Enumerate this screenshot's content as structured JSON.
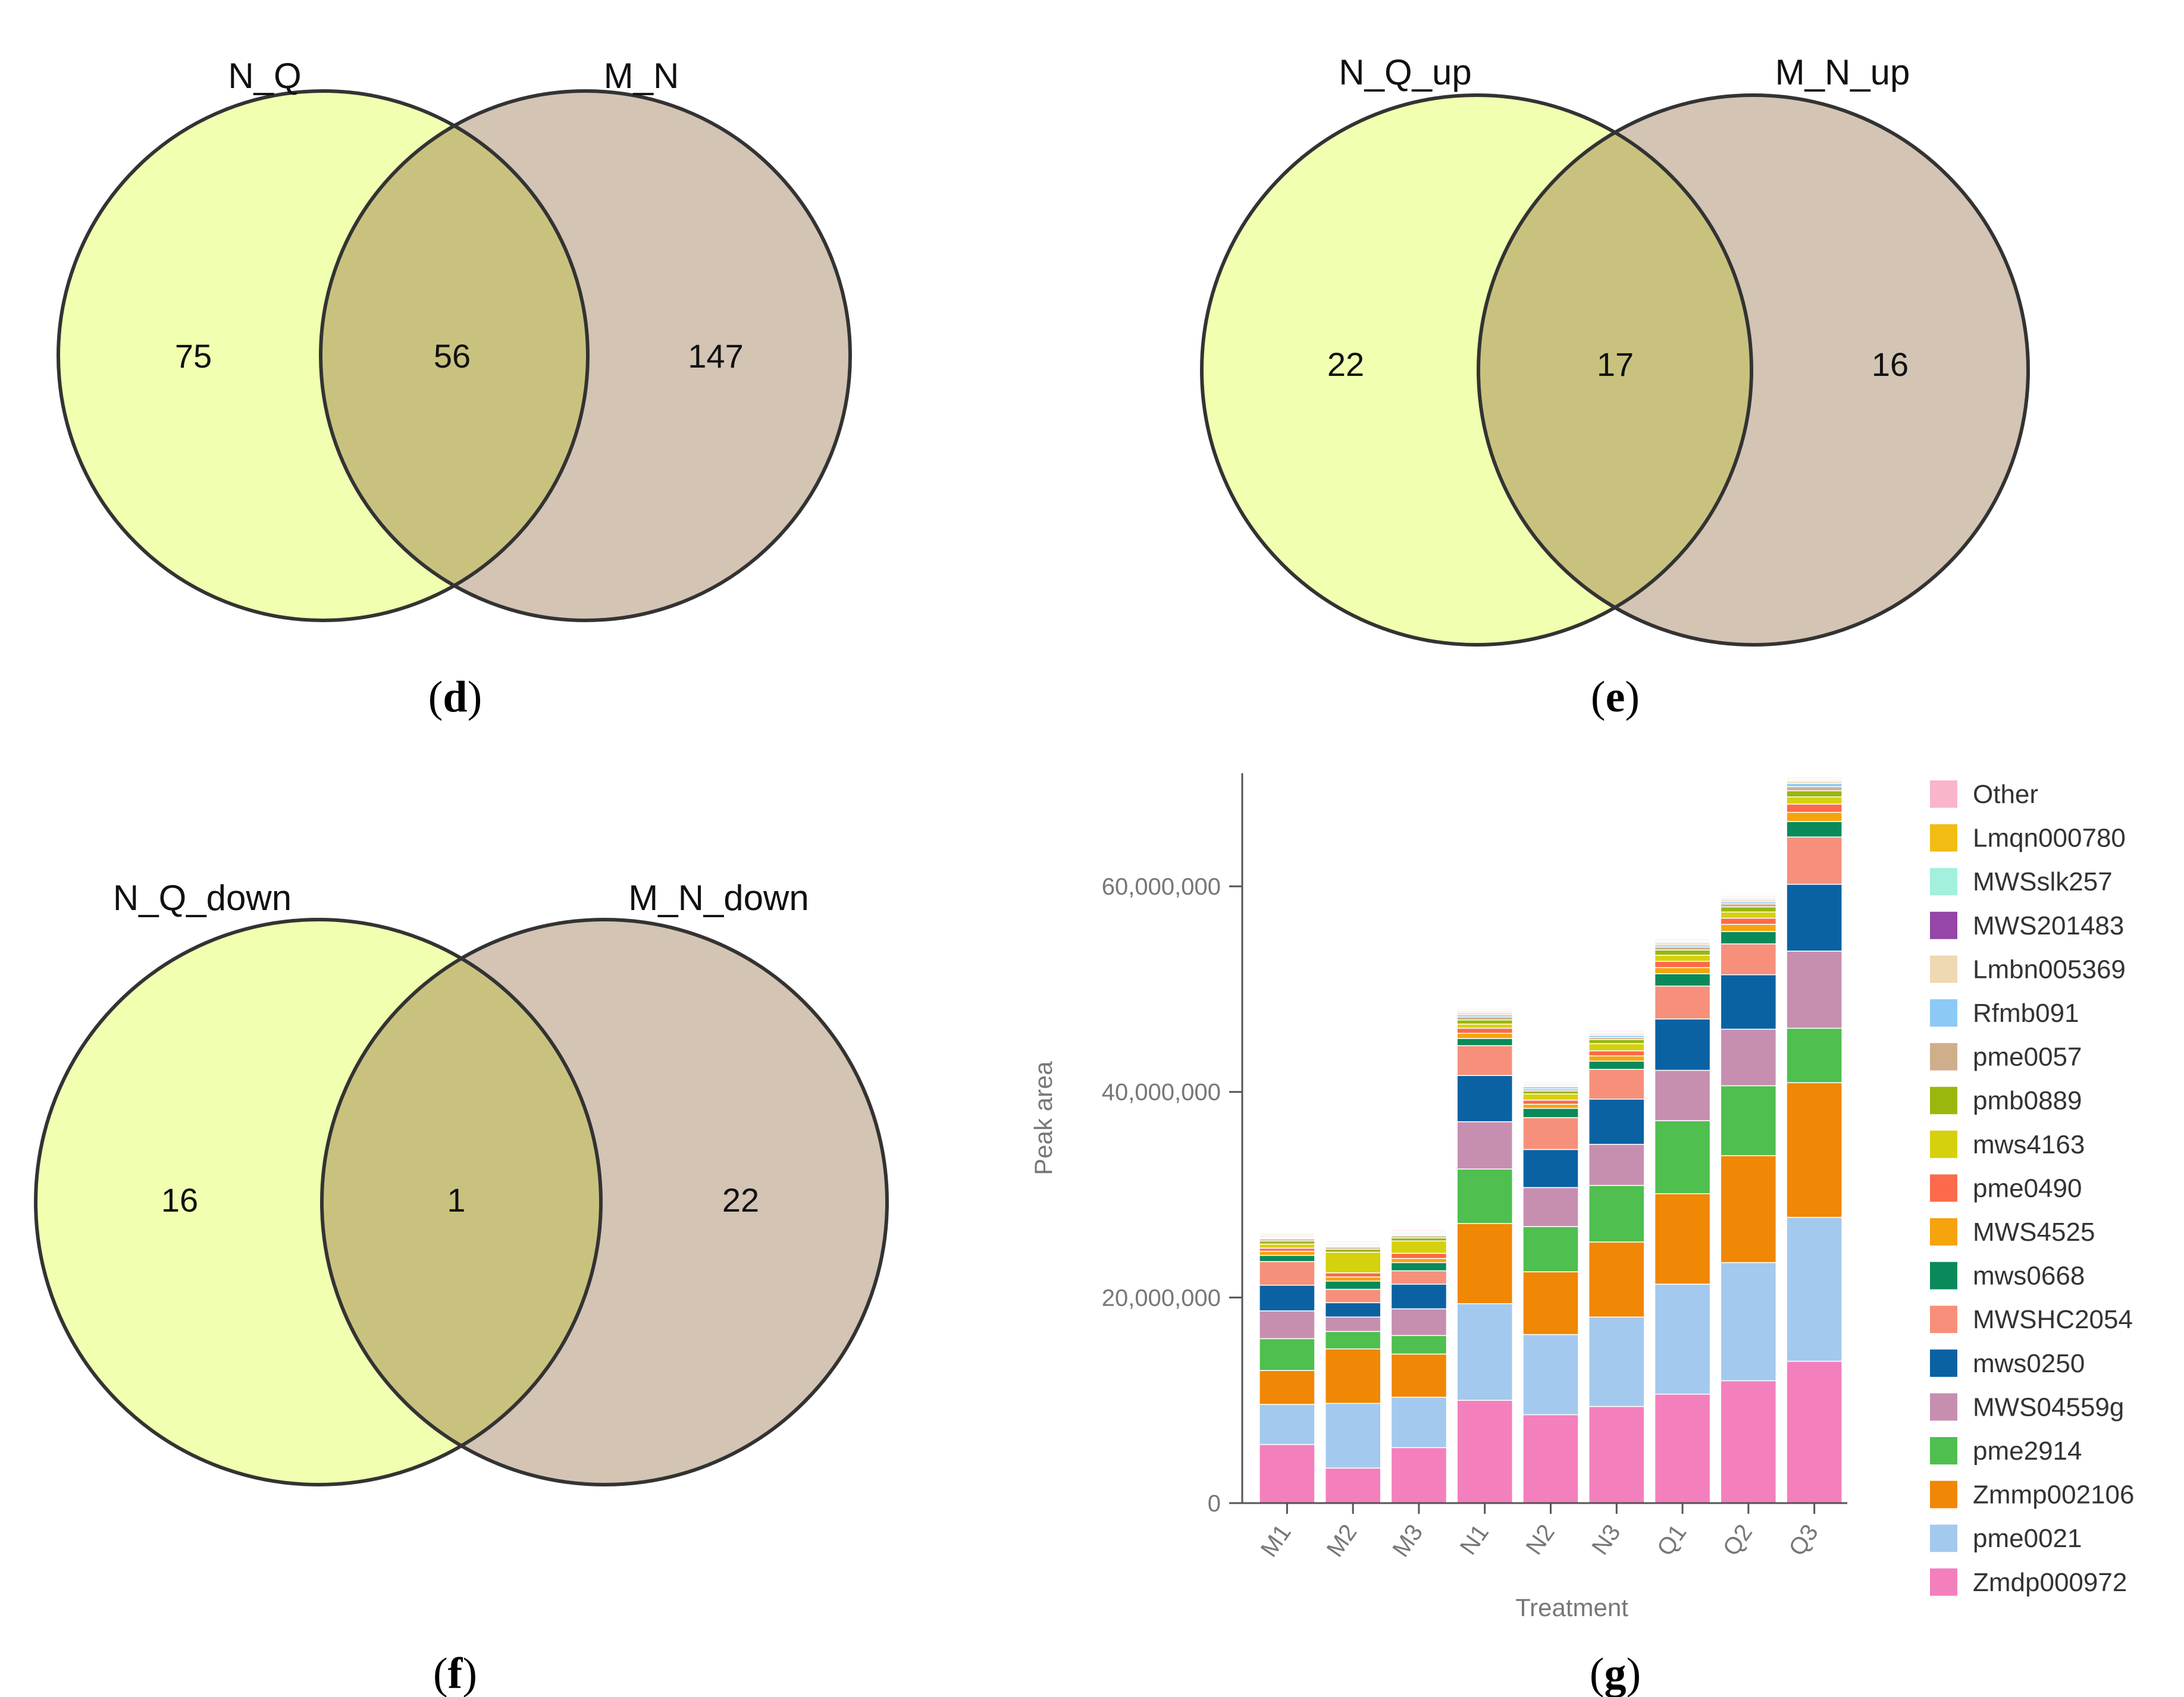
{
  "panels": {
    "d": "d",
    "e": "e",
    "f": "f",
    "g": "g"
  },
  "colors": {
    "left_circle": "#f0ffb0",
    "right_circle": "#d3c4b4",
    "overlap": "#c9c27f",
    "outline": "#333333"
  },
  "venn_d": {
    "left_label": "N_Q",
    "right_label": "M_N",
    "left_only": "75",
    "both": "56",
    "right_only": "147"
  },
  "venn_e": {
    "left_label": "N_Q_up",
    "right_label": "M_N_up",
    "left_only": "22",
    "both": "17",
    "right_only": "16"
  },
  "venn_f": {
    "left_label": "N_Q_down",
    "right_label": "M_N_down",
    "left_only": "16",
    "both": "1",
    "right_only": "22"
  },
  "chart_data": {
    "type": "bar",
    "stacked": true,
    "title": "",
    "xlabel": "Treatment",
    "ylabel": "Peak area",
    "ylim": [
      0,
      71000000
    ],
    "yticks": [
      0,
      20000000,
      40000000,
      60000000
    ],
    "ytick_labels": [
      "0",
      "20,000,000",
      "40,000,000",
      "60,000,000"
    ],
    "categories": [
      "M1",
      "M2",
      "M3",
      "N1",
      "N2",
      "N3",
      "Q1",
      "Q2",
      "Q3"
    ],
    "legend_position": "right",
    "series": [
      {
        "name": "Zmdp000972",
        "color": "#f47fbd",
        "values": [
          5700000,
          3400000,
          5400000,
          10000000,
          8600000,
          9400000,
          10600000,
          11900000,
          13800000
        ]
      },
      {
        "name": "pme0021",
        "color": "#a3c9ee",
        "values": [
          3900000,
          6300000,
          4900000,
          9400000,
          7800000,
          8700000,
          10700000,
          11500000,
          14000000
        ]
      },
      {
        "name": "Zmmp002106",
        "color": "#f08705",
        "values": [
          3300000,
          5300000,
          4200000,
          7800000,
          6100000,
          7300000,
          8800000,
          10400000,
          13100000
        ]
      },
      {
        "name": "pme2914",
        "color": "#4fbf4f",
        "values": [
          3100000,
          1700000,
          1800000,
          5300000,
          4400000,
          5500000,
          7100000,
          6800000,
          5300000
        ]
      },
      {
        "name": "MWS04559g",
        "color": "#c68fb0",
        "values": [
          2700000,
          1400000,
          2600000,
          4600000,
          3800000,
          4000000,
          4900000,
          5500000,
          7500000
        ]
      },
      {
        "name": "mws0250",
        "color": "#0b62a3",
        "values": [
          2500000,
          1400000,
          2400000,
          4500000,
          3700000,
          4400000,
          5000000,
          5300000,
          6500000
        ]
      },
      {
        "name": "MWSHC2054",
        "color": "#f6907b",
        "values": [
          2300000,
          1300000,
          1300000,
          2900000,
          3100000,
          2900000,
          3200000,
          3000000,
          4600000
        ]
      },
      {
        "name": "mws0668",
        "color": "#0a8a5a",
        "values": [
          600000,
          800000,
          800000,
          700000,
          900000,
          800000,
          1200000,
          1200000,
          1500000
        ]
      },
      {
        "name": "MWS4525",
        "color": "#f5a40d",
        "values": [
          400000,
          400000,
          400000,
          500000,
          400000,
          500000,
          600000,
          700000,
          900000
        ]
      },
      {
        "name": "pme0490",
        "color": "#fb6a4a",
        "values": [
          300000,
          400000,
          500000,
          500000,
          400000,
          500000,
          600000,
          600000,
          800000
        ]
      },
      {
        "name": "mws4163",
        "color": "#d6d10d",
        "values": [
          400000,
          2000000,
          1200000,
          400000,
          600000,
          700000,
          600000,
          600000,
          700000
        ]
      },
      {
        "name": "pmb0889",
        "color": "#9ab70d",
        "values": [
          300000,
          300000,
          300000,
          400000,
          300000,
          400000,
          500000,
          500000,
          600000
        ]
      },
      {
        "name": "pme0057",
        "color": "#cfae8c",
        "values": [
          200000,
          200000,
          200000,
          300000,
          200000,
          200000,
          300000,
          300000,
          400000
        ]
      },
      {
        "name": "Rfmb091",
        "color": "#8cc9f5",
        "values": [
          100000,
          100000,
          100000,
          200000,
          200000,
          200000,
          200000,
          200000,
          300000
        ]
      },
      {
        "name": "Lmbn005369",
        "color": "#eed9b3",
        "values": [
          100000,
          100000,
          100000,
          200000,
          100000,
          100000,
          200000,
          200000,
          200000
        ]
      },
      {
        "name": "MWS201483",
        "color": "#9447a6",
        "values": [
          100000,
          100000,
          100000,
          100000,
          100000,
          100000,
          100000,
          100000,
          100000
        ]
      },
      {
        "name": "MWSslk257",
        "color": "#a3f0dd",
        "values": [
          100000,
          100000,
          100000,
          100000,
          100000,
          100000,
          100000,
          100000,
          100000
        ]
      },
      {
        "name": "Lmqn000780",
        "color": "#f2bc12",
        "values": [
          100000,
          100000,
          100000,
          100000,
          100000,
          100000,
          100000,
          100000,
          100000
        ]
      },
      {
        "name": "Other",
        "color": "#f9b5c9",
        "values": [
          100000,
          100000,
          100000,
          100000,
          100000,
          100000,
          100000,
          100000,
          100000
        ]
      }
    ]
  }
}
